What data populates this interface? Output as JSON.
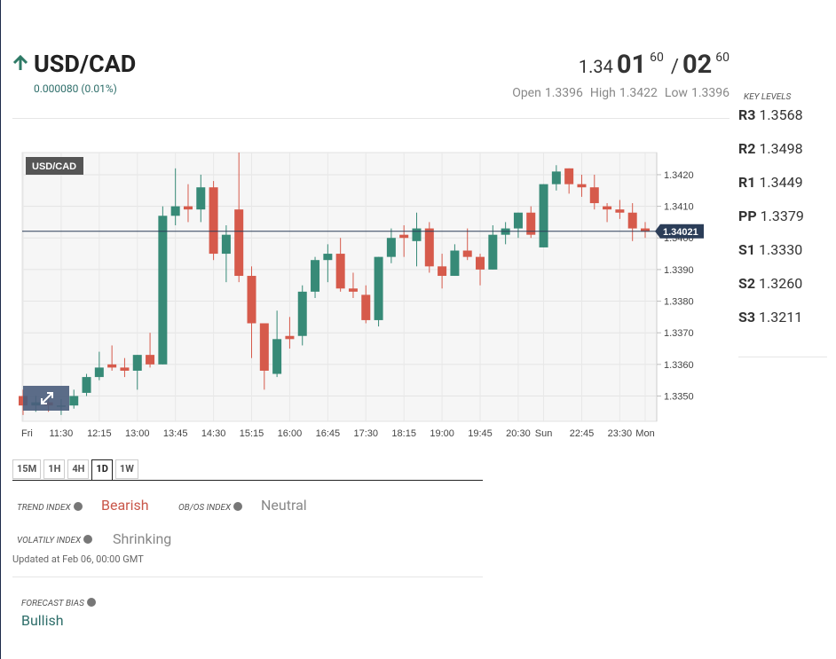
{
  "header": {
    "symbol": "USD/CAD",
    "change": "0.000080 (0.01%)"
  },
  "quote": {
    "bid_big": "1.34",
    "bid_pips": "01",
    "bid_fraction": "60",
    "separator": "/",
    "ask_pips": "02",
    "ask_fraction": "60"
  },
  "session": [
    {
      "label": "Open",
      "value": "1.3396"
    },
    {
      "label": "High",
      "value": "1.3422"
    },
    {
      "label": "Low",
      "value": "1.3396"
    }
  ],
  "key_levels": {
    "title": "KEY LEVELS",
    "levels": [
      {
        "label": "R3",
        "value": "1.3568"
      },
      {
        "label": "R2",
        "value": "1.3498"
      },
      {
        "label": "R1",
        "value": "1.3449"
      },
      {
        "label": "PP",
        "value": "1.3379"
      },
      {
        "label": "S1",
        "value": "1.3330"
      },
      {
        "label": "S2",
        "value": "1.3260"
      },
      {
        "label": "S3",
        "value": "1.3211"
      }
    ]
  },
  "chart_data": {
    "type": "candlestick",
    "title": "USD/CAD",
    "categories": [
      "Fri",
      null,
      null,
      "11:30",
      null,
      null,
      "12:15",
      null,
      null,
      "13:00",
      null,
      null,
      "13:45",
      null,
      null,
      "14:30",
      null,
      null,
      "15:15",
      null,
      null,
      "16:00",
      null,
      null,
      "16:45",
      null,
      null,
      "17:30",
      null,
      null,
      "18:15",
      null,
      null,
      "19:00",
      null,
      null,
      "19:45",
      null,
      null,
      "20:30",
      null,
      "Sun",
      null,
      null,
      "22:45",
      null,
      null,
      "23:30",
      null,
      "Mon"
    ],
    "open": [
      1.335,
      1.3347,
      1.3348,
      1.3347,
      1.3347,
      1.3351,
      1.3356,
      1.336,
      1.3359,
      1.3358,
      1.3363,
      1.336,
      1.3407,
      1.341,
      1.3409,
      1.3416,
      1.3395,
      1.3409,
      1.3388,
      1.3373,
      1.3357,
      1.3369,
      1.3369,
      1.3383,
      1.3393,
      1.3395,
      1.3384,
      1.3382,
      1.3374,
      1.3394,
      1.3401,
      1.3399,
      1.3403,
      1.3391,
      1.3388,
      1.3396,
      1.3394,
      1.339,
      1.3401,
      1.3403,
      1.3408,
      1.3397,
      1.3417,
      1.3422,
      1.3417,
      1.3416,
      1.341,
      1.3409,
      1.3408,
      1.3403
    ],
    "high": [
      1.3352,
      1.335,
      1.335,
      1.3349,
      1.3352,
      1.3357,
      1.3364,
      1.3366,
      1.3362,
      1.3363,
      1.337,
      1.341,
      1.3422,
      1.3417,
      1.342,
      1.3418,
      1.3404,
      1.3427,
      1.3391,
      1.3373,
      1.3377,
      1.3375,
      1.3385,
      1.3394,
      1.3398,
      1.34,
      1.3389,
      1.3385,
      1.3394,
      1.3403,
      1.3404,
      1.3408,
      1.3405,
      1.3395,
      1.3398,
      1.3403,
      1.3395,
      1.3404,
      1.3405,
      1.3408,
      1.341,
      1.3417,
      1.3423,
      1.3422,
      1.342,
      1.342,
      1.3411,
      1.3412,
      1.3411,
      1.3405
    ],
    "low": [
      1.3344,
      1.3345,
      1.3345,
      1.3344,
      1.3346,
      1.335,
      1.3355,
      1.3358,
      1.3356,
      1.3352,
      1.3359,
      1.336,
      1.3404,
      1.3405,
      1.3405,
      1.3393,
      1.3386,
      1.3386,
      1.3362,
      1.3352,
      1.3356,
      1.3365,
      1.3366,
      1.3381,
      1.3386,
      1.3383,
      1.3381,
      1.3373,
      1.3372,
      1.3392,
      1.3394,
      1.3391,
      1.3389,
      1.3384,
      1.3388,
      1.3393,
      1.3385,
      1.339,
      1.3398,
      1.34,
      1.34,
      1.3397,
      1.3415,
      1.3414,
      1.3413,
      1.3409,
      1.3405,
      1.3406,
      1.3399,
      1.34
    ],
    "close": [
      1.3347,
      1.3348,
      1.3347,
      1.3347,
      1.335,
      1.3356,
      1.3359,
      1.3359,
      1.3358,
      1.3363,
      1.336,
      1.3407,
      1.341,
      1.3409,
      1.3416,
      1.3395,
      1.3401,
      1.3388,
      1.3373,
      1.3358,
      1.3368,
      1.3368,
      1.3383,
      1.3393,
      1.3395,
      1.3384,
      1.3383,
      1.3374,
      1.3394,
      1.34,
      1.34,
      1.3403,
      1.3391,
      1.3388,
      1.3396,
      1.3394,
      1.339,
      1.3401,
      1.3403,
      1.3408,
      1.3401,
      1.3417,
      1.3421,
      1.3417,
      1.3416,
      1.3411,
      1.3409,
      1.3408,
      1.3403,
      1.3402
    ],
    "up_color": "#378a77",
    "down_color": "#d65a4b",
    "last_price": 1.34021,
    "last_price_color": "#2b3d58",
    "ylim": [
      1.3342,
      1.3427
    ],
    "yticks": [
      {
        "value": 1.335,
        "label": "1.3350"
      },
      {
        "value": 1.336,
        "label": "1.3360"
      },
      {
        "value": 1.337,
        "label": "1.3370"
      },
      {
        "value": 1.338,
        "label": "1.3380"
      },
      {
        "value": 1.339,
        "label": "1.3390"
      },
      {
        "value": 1.34,
        "label": "1.3400"
      },
      {
        "value": 1.341,
        "label": "1.3410"
      },
      {
        "value": 1.342,
        "label": "1.3420"
      }
    ],
    "grid": true
  },
  "timeframes": {
    "options": [
      "15M",
      "1H",
      "4H",
      "1D",
      "1W"
    ],
    "active": 3
  },
  "indices": {
    "trend": {
      "label": "TREND INDEX",
      "value": "Bearish"
    },
    "obos": {
      "label": "OB/OS INDEX",
      "value": "Neutral"
    },
    "volatility": {
      "label": "VOLATILY INDEX",
      "value": "Shrinking"
    },
    "updated": "Updated at Feb 06, 00:00 GMT"
  },
  "forecast": {
    "label": "FORECAST BIAS",
    "value": "Bullish"
  }
}
